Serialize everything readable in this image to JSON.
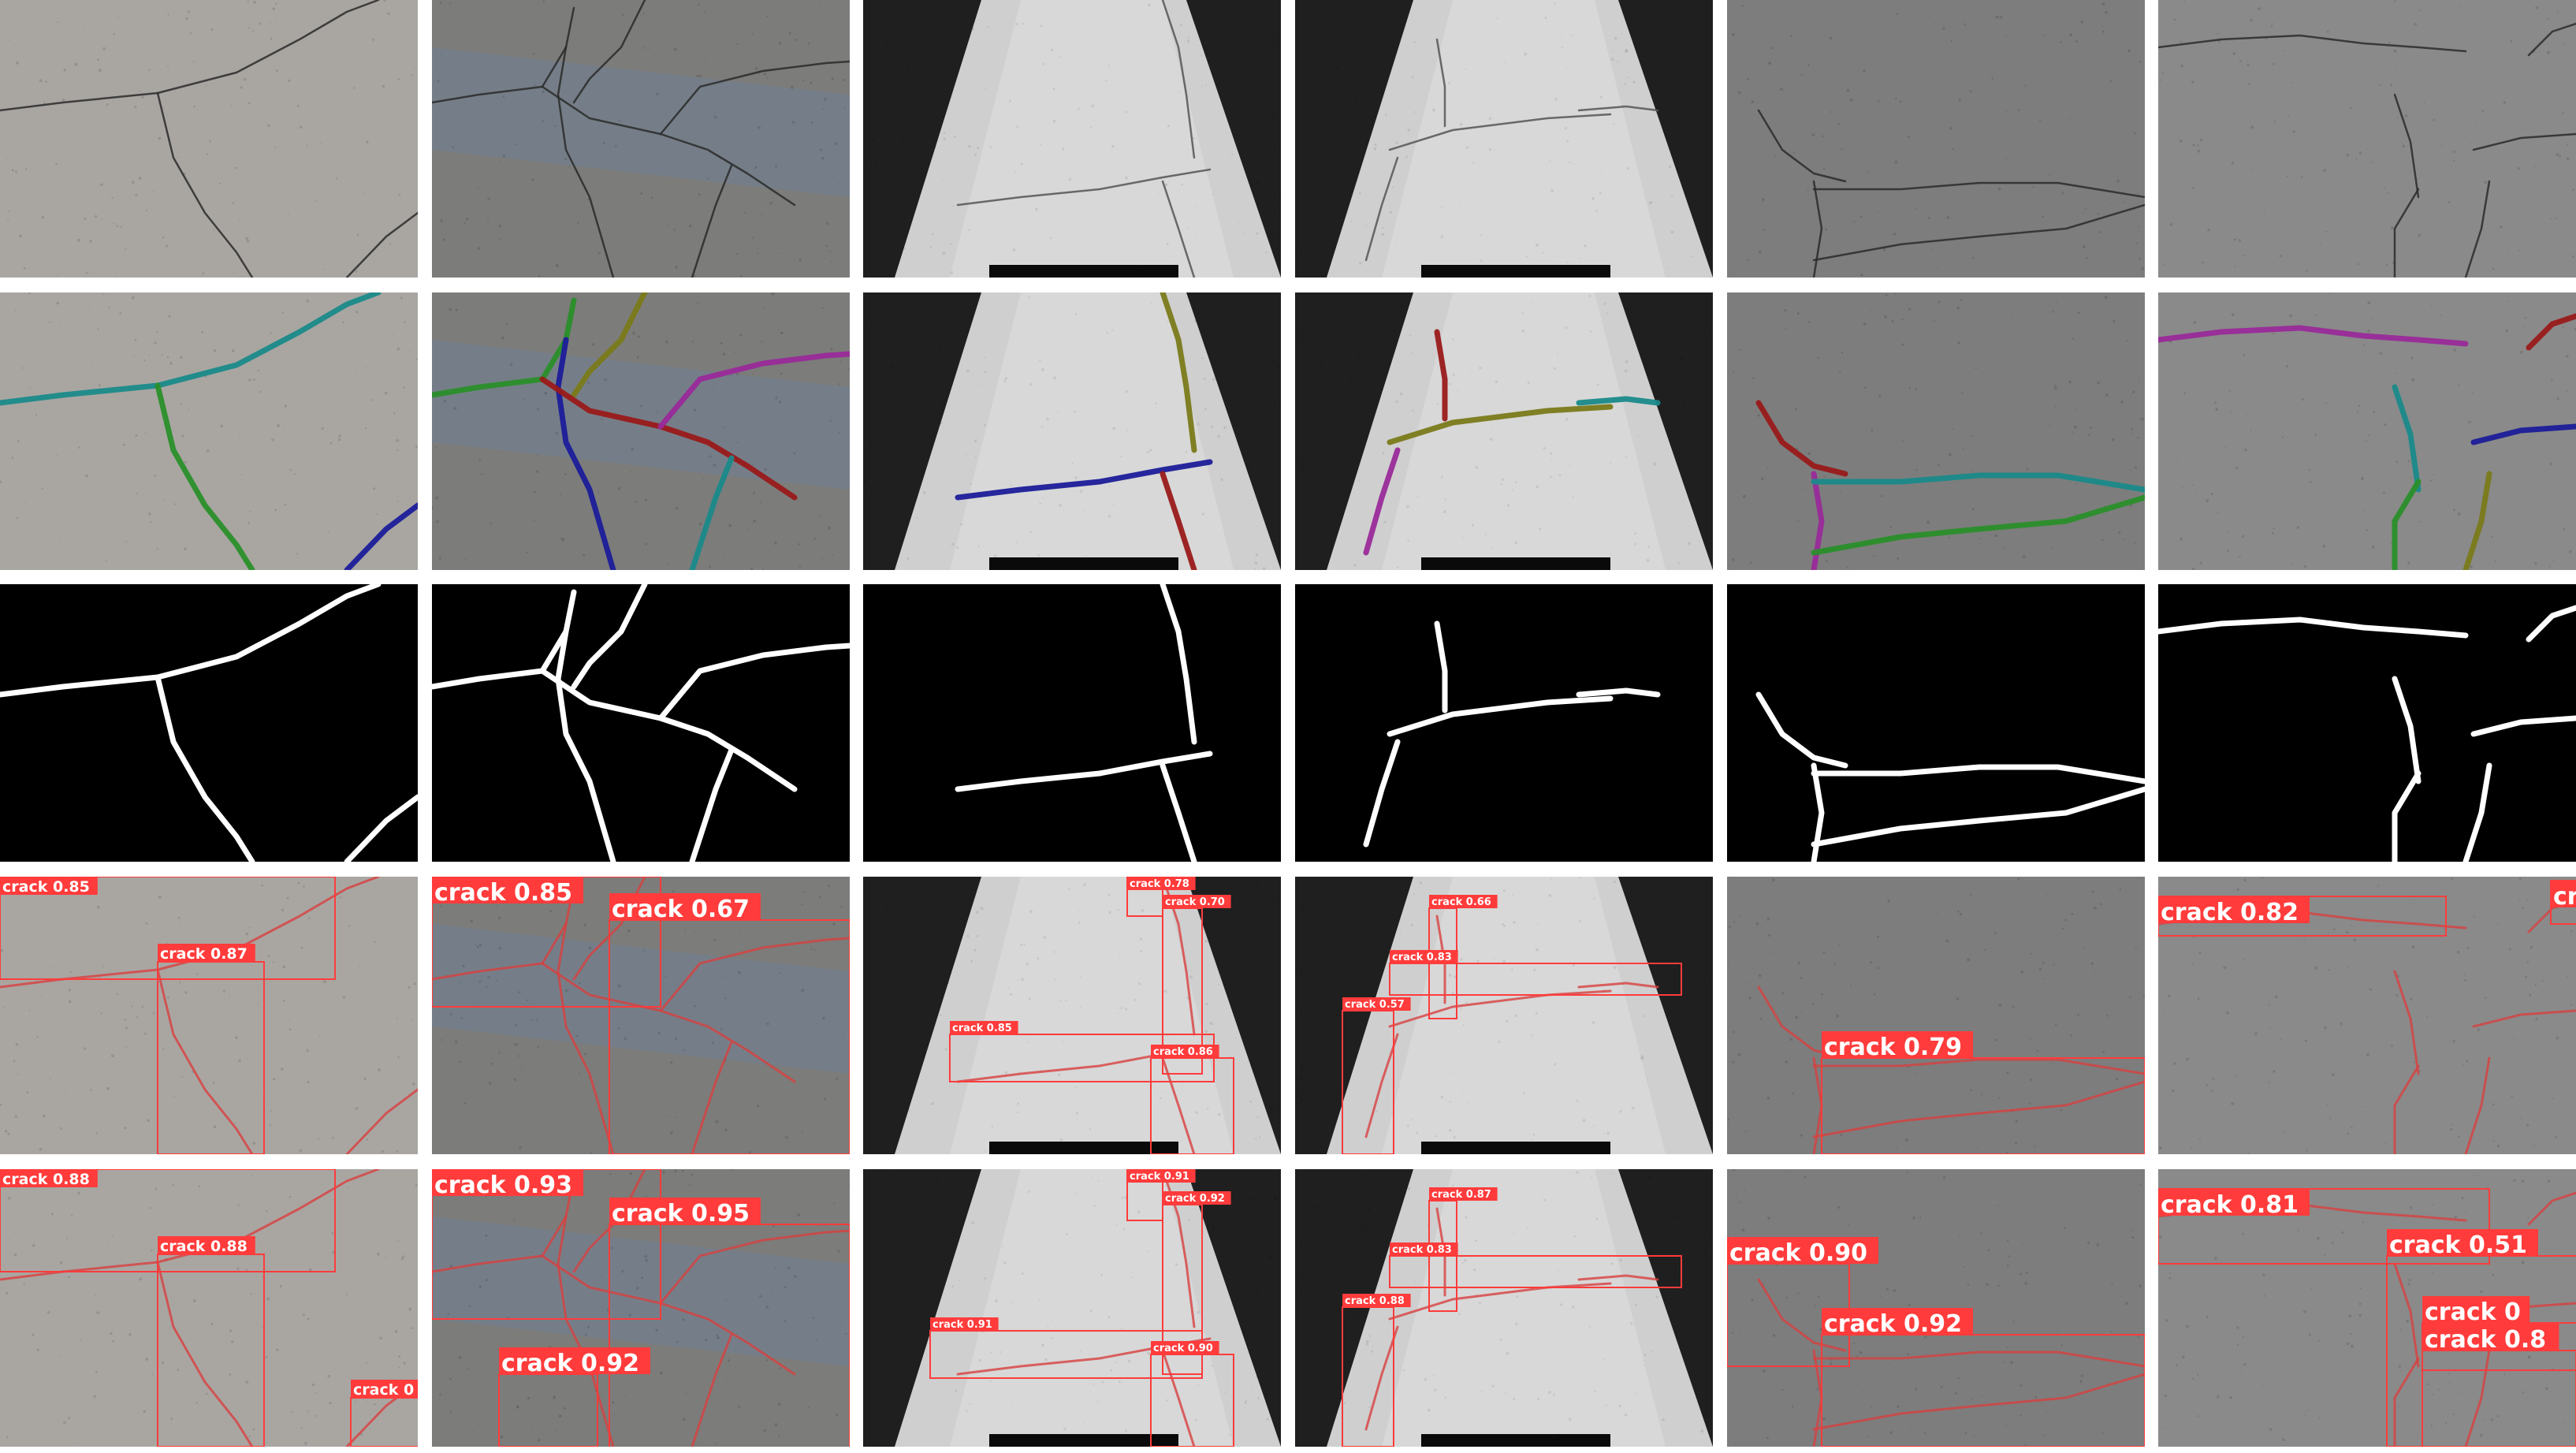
{
  "figure": {
    "rows": [
      {
        "role": "input"
      },
      {
        "role": "segmentation-overlay"
      },
      {
        "role": "binary-mask"
      },
      {
        "role": "detection"
      },
      {
        "role": "detection"
      }
    ],
    "columns": [
      {
        "surface": "concrete-wall"
      },
      {
        "surface": "asphalt-patched"
      },
      {
        "surface": "night-road-1"
      },
      {
        "surface": "night-road-2"
      },
      {
        "surface": "asphalt-gray-1"
      },
      {
        "surface": "asphalt-gray-2"
      }
    ]
  },
  "detections": {
    "row4": [
      [
        "crack 0.85",
        "crack 0.87"
      ],
      [
        "crack 0.85",
        "crack 0.67"
      ],
      [
        "crack 0.78",
        "crack 0.70",
        "crack 0.85",
        "crack 0.86"
      ],
      [
        "crack 0.66",
        "crack 0.83",
        "crack 0.57"
      ],
      [
        "crack 0.79"
      ],
      [
        "crack 0.82",
        "cr"
      ]
    ],
    "row5": [
      [
        "crack 0.88",
        "crack 0.88",
        "crack 0"
      ],
      [
        "crack 0.93",
        "crack 0.95",
        "crack 0.92"
      ],
      [
        "crack 0.91",
        "crack 0.92",
        "crack 0.91",
        "crack 0.90"
      ],
      [
        "crack 0.87",
        "crack 0.83",
        "crack 0.88"
      ],
      [
        "crack 0.90",
        "crack 0.92"
      ],
      [
        "crack 0.81",
        "crack 0.51",
        "crack 0",
        "crack 0.8"
      ]
    ]
  },
  "colors": {
    "box": "#ff3b3b",
    "label_bg": "#ff3b3b",
    "label_text": "#ffffff",
    "mask_fg": "#ffffff",
    "mask_bg": "#000000",
    "seg_colors": [
      "#1a8a8a",
      "#2a8f2a",
      "#1c1c9a",
      "#7a7a1a",
      "#9a1a1a",
      "#9a2a9a"
    ],
    "surface": [
      "#a9a6a2",
      "#7c7c7a",
      "#b8b8b8",
      "#b0b0b0",
      "#7d7d7d",
      "#8a8a8a"
    ]
  },
  "icons": {
    "cells": "photo-thumbnail",
    "boxes": "bounding-box"
  }
}
